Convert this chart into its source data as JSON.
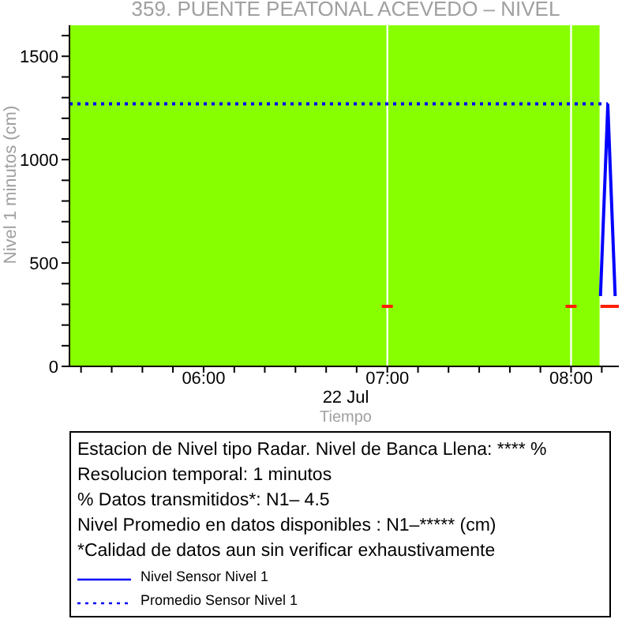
{
  "chart_data": {
    "type": "line",
    "title": "359. PUENTE PEATONAL ACEVEDO – NIVEL",
    "xlabel": "Tiempo",
    "ylabel": "Nivel 1 minutos (cm)",
    "annotations": [
      "22 Jul",
      "Estacion de Nivel tipo Radar. Nivel de Banca Llena: **** %",
      "Resolucion temporal: 1 minutos",
      "% Datos transmitidos*: N1–  4.5",
      "Nivel Promedio en datos disponibles : N1–***** (cm)",
      "*Calidad de datos aun sin verificar exhaustivamente"
    ],
    "xlim": [
      5.27,
      8.26
    ],
    "ylim": [
      0,
      1650
    ],
    "xticks": [
      {
        "value": 5.333,
        "label": null
      },
      {
        "value": 5.5,
        "label": null
      },
      {
        "value": 5.667,
        "label": null
      },
      {
        "value": 5.833,
        "label": null
      },
      {
        "value": 6,
        "label": "06:00"
      },
      {
        "value": 6.167,
        "label": null
      },
      {
        "value": 6.333,
        "label": null
      },
      {
        "value": 6.5,
        "label": null
      },
      {
        "value": 6.667,
        "label": null
      },
      {
        "value": 6.833,
        "label": null
      },
      {
        "value": 7,
        "label": "07:00"
      },
      {
        "value": 7.167,
        "label": null
      },
      {
        "value": 7.333,
        "label": null
      },
      {
        "value": 7.5,
        "label": null
      },
      {
        "value": 7.667,
        "label": null
      },
      {
        "value": 7.833,
        "label": null
      },
      {
        "value": 8,
        "label": "08:00"
      },
      {
        "value": 8.167,
        "label": null
      }
    ],
    "yticks": [
      0,
      {
        "value": 100,
        "label": null
      },
      {
        "value": 200,
        "label": null
      },
      {
        "value": 300,
        "label": null
      },
      {
        "value": 400,
        "label": null
      },
      500,
      {
        "value": 600,
        "label": null
      },
      {
        "value": 700,
        "label": null
      },
      {
        "value": 800,
        "label": null
      },
      {
        "value": 900,
        "label": null
      },
      1000,
      {
        "value": 1100,
        "label": null
      },
      {
        "value": 1200,
        "label": null
      },
      {
        "value": 1300,
        "label": null
      },
      {
        "value": 1400,
        "label": null
      },
      1500,
      {
        "value": 1600,
        "label": null
      }
    ],
    "bands": [
      {
        "axis": "x",
        "from": 5.27,
        "to": 6.995,
        "color": "#88ff00"
      },
      {
        "axis": "x",
        "from": 7.005,
        "to": 7.995,
        "color": "#88ff00"
      },
      {
        "axis": "x",
        "from": 8.005,
        "to": 8.155,
        "color": "#88ff00"
      }
    ],
    "series": [
      {
        "name": "Nivel Sensor Nivel 1",
        "color": "#0000ff",
        "x": [
          8.16,
          8.2,
          8.24
        ],
        "values": [
          340,
          1265,
          340
        ]
      },
      {
        "name": "Promedio Sensor Nivel 1",
        "color": "#0000ff",
        "line_style": "dotted",
        "x": [
          5.27,
          8.2
        ],
        "values": [
          1270,
          1270
        ]
      },
      {
        "color": "#ff2000",
        "x": [
          6.97,
          7.03,
          7.5,
          7.97,
          8.03,
          8.1,
          8.16,
          8.26
        ],
        "values": [
          290,
          290,
          null,
          290,
          290,
          null,
          290,
          290
        ]
      }
    ],
    "legend": "bottom",
    "grid": false,
    "marker": "none"
  }
}
